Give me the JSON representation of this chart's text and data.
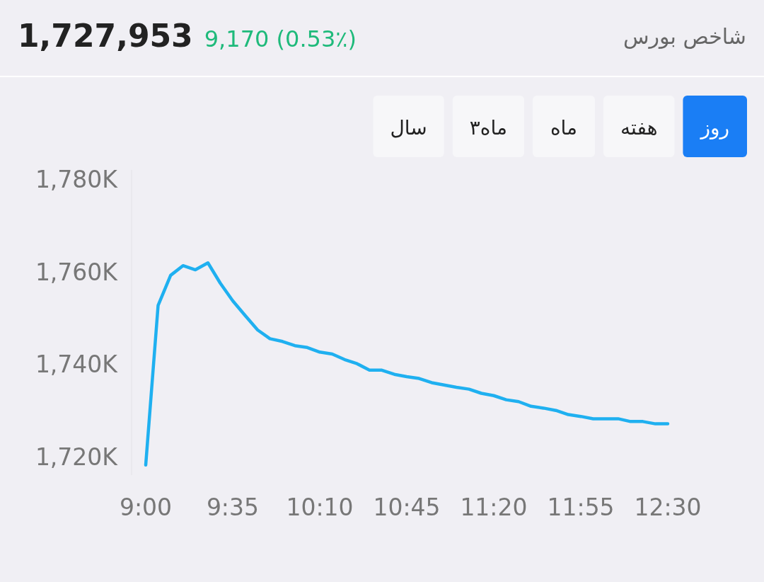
{
  "chart_data": {
    "type": "line",
    "title": "شاخص بورس",
    "annotations": [
      "1,727,953",
      "9,170 (0.53٪)",
      "روز",
      "هفته",
      "ماه",
      "۳ماه",
      "سال"
    ],
    "x": [
      9,
      9.083,
      9.167,
      9.25,
      9.333,
      9.417,
      9.5,
      9.583,
      9.667,
      9.75,
      9.833,
      9.917,
      10,
      10.083,
      10.167,
      10.25,
      10.333,
      10.417,
      10.5,
      10.583,
      10.667,
      10.75,
      10.833,
      10.917,
      11,
      11.083,
      11.167,
      11.25,
      11.333,
      11.417,
      11.5,
      11.583,
      11.667,
      11.75,
      11.833,
      11.917,
      12,
      12.083,
      12.167,
      12.25,
      12.333,
      12.417,
      12.5
    ],
    "series": [
      {
        "color": "#1fb0f0",
        "values": [
          1718.2,
          1752.7,
          1759.2,
          1761.3,
          1760.4,
          1761.9,
          1757.5,
          1753.7,
          1750.5,
          1747.4,
          1745.5,
          1744.9,
          1744.0,
          1743.6,
          1742.6,
          1742.2,
          1741.0,
          1740.1,
          1738.7,
          1738.7,
          1737.8,
          1737.3,
          1736.9,
          1736.0,
          1735.5,
          1735.0,
          1734.6,
          1733.7,
          1733.2,
          1732.3,
          1731.9,
          1730.9,
          1730.5,
          1730.0,
          1729.1,
          1728.7,
          1728.2,
          1728.2,
          1728.2,
          1727.6,
          1727.6,
          1727.1,
          1727.1
        ]
      }
    ],
    "xlim": [
      9,
      12.5
    ],
    "xticks": [
      {
        "value": 9,
        "label": "9:00"
      },
      {
        "value": 9.583,
        "label": "9:35"
      },
      {
        "value": 10.167,
        "label": "10:10"
      },
      {
        "value": 10.75,
        "label": "10:45"
      },
      {
        "value": 11.333,
        "label": "11:20"
      },
      {
        "value": 11.917,
        "label": "11:55"
      },
      {
        "value": 12.5,
        "label": "12:30"
      }
    ],
    "ylim": [
      1716,
      1782
    ],
    "yticks": [
      {
        "value": 1720,
        "label": "1,720K"
      },
      {
        "value": 1740,
        "label": "1,740K"
      },
      {
        "value": 1760,
        "label": "1,760K"
      },
      {
        "value": 1780,
        "label": "1,780K"
      }
    ],
    "grid": false,
    "marker": "none",
    "line_style": "solid"
  }
}
